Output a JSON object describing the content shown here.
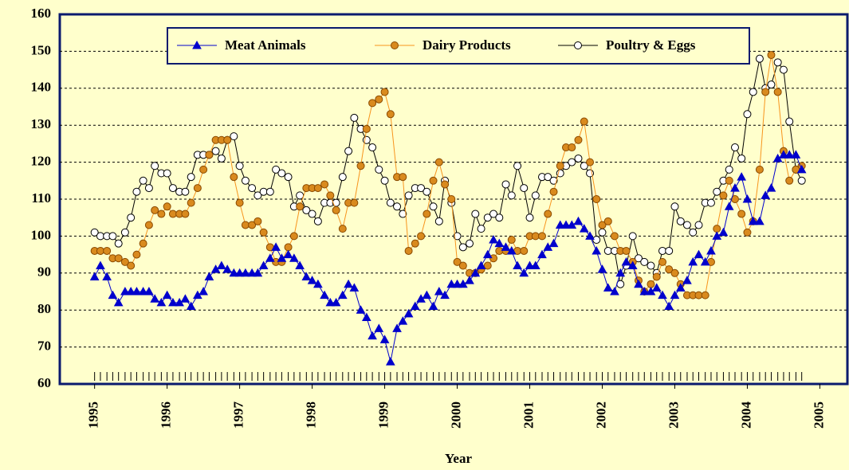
{
  "chart_data": {
    "type": "line",
    "x_label": "Year",
    "x": [
      1995.0,
      1995.08,
      1995.17,
      1995.25,
      1995.33,
      1995.42,
      1995.5,
      1995.58,
      1995.67,
      1995.75,
      1995.83,
      1995.92,
      1996.0,
      1996.08,
      1996.17,
      1996.25,
      1996.33,
      1996.42,
      1996.5,
      1996.58,
      1996.67,
      1996.75,
      1996.83,
      1996.92,
      1997.0,
      1997.08,
      1997.17,
      1997.25,
      1997.33,
      1997.42,
      1997.5,
      1997.58,
      1997.67,
      1997.75,
      1997.83,
      1997.92,
      1998.0,
      1998.08,
      1998.17,
      1998.25,
      1998.33,
      1998.42,
      1998.5,
      1998.58,
      1998.67,
      1998.75,
      1998.83,
      1998.92,
      1999.0,
      1999.08,
      1999.17,
      1999.25,
      1999.33,
      1999.42,
      1999.5,
      1999.58,
      1999.67,
      1999.75,
      1999.83,
      1999.92,
      2000.0,
      2000.08,
      2000.17,
      2000.25,
      2000.33,
      2000.42,
      2000.5,
      2000.58,
      2000.67,
      2000.75,
      2000.83,
      2000.92,
      2001.0,
      2001.08,
      2001.17,
      2001.25,
      2001.33,
      2001.42,
      2001.5,
      2001.58,
      2001.67,
      2001.75,
      2001.83,
      2001.92,
      2002.0,
      2002.08,
      2002.17,
      2002.25,
      2002.33,
      2002.42,
      2002.5,
      2002.58,
      2002.67,
      2002.75,
      2002.83,
      2002.92,
      2003.0,
      2003.08,
      2003.17,
      2003.25,
      2003.33,
      2003.42,
      2003.5,
      2003.58,
      2003.67,
      2003.75,
      2003.83,
      2003.92,
      2004.0,
      2004.08,
      2004.17,
      2004.25,
      2004.33,
      2004.42,
      2004.5,
      2004.58,
      2004.67,
      2004.75
    ],
    "series": [
      {
        "name": "Meat Animals",
        "color": "#0000cc",
        "marker": "triangle",
        "values": [
          89,
          92,
          89,
          84,
          82,
          85,
          85,
          85,
          85,
          85,
          83,
          82,
          84,
          82,
          82,
          83,
          81,
          84,
          85,
          89,
          91,
          92,
          91,
          90,
          90,
          90,
          90,
          90,
          92,
          94,
          97,
          94,
          95,
          94,
          92,
          89,
          88,
          87,
          84,
          82,
          82,
          84,
          87,
          86,
          80,
          78,
          73,
          75,
          72,
          66,
          75,
          77,
          79,
          81,
          83,
          84,
          81,
          85,
          84,
          87,
          87,
          87,
          88,
          90,
          92,
          95,
          99,
          98,
          97,
          96,
          92,
          90,
          92,
          92,
          95,
          97,
          98,
          103,
          103,
          103,
          104,
          102,
          100,
          96,
          91,
          86,
          85,
          90,
          93,
          92,
          87,
          85,
          85,
          86,
          84,
          81,
          84,
          86,
          88,
          93,
          95,
          93,
          96,
          100,
          101,
          108,
          113,
          116,
          110,
          104,
          104,
          111,
          113,
          121,
          122,
          122,
          122,
          118
        ]
      },
      {
        "name": "Dairy Products",
        "color": "#f7941d",
        "marker": "circle",
        "values": [
          96,
          96,
          96,
          94,
          94,
          93,
          92,
          95,
          98,
          103,
          107,
          106,
          108,
          106,
          106,
          106,
          109,
          113,
          118,
          122,
          126,
          126,
          126,
          116,
          109,
          103,
          103,
          104,
          101,
          97,
          93,
          93,
          97,
          100,
          108,
          113,
          113,
          113,
          114,
          111,
          107,
          102,
          109,
          109,
          119,
          129,
          136,
          137,
          139,
          133,
          116,
          116,
          96,
          98,
          100,
          106,
          115,
          120,
          114,
          110,
          93,
          92,
          90,
          90,
          91,
          92,
          94,
          96,
          96,
          99,
          96,
          96,
          100,
          100,
          100,
          106,
          112,
          119,
          124,
          124,
          126,
          131,
          120,
          110,
          103,
          104,
          100,
          96,
          96,
          93,
          88,
          85,
          87,
          89,
          93,
          91,
          90,
          87,
          84,
          84,
          84,
          84,
          93,
          102,
          111,
          115,
          110,
          106,
          101,
          104,
          118,
          139,
          149,
          139,
          123,
          115,
          118,
          119
        ]
      },
      {
        "name": "Poultry & Eggs",
        "color": "#000000",
        "marker": "open-circle",
        "values": [
          101,
          100,
          100,
          100,
          98,
          101,
          105,
          112,
          115,
          113,
          119,
          117,
          117,
          113,
          112,
          112,
          116,
          122,
          122,
          122,
          123,
          121,
          126,
          127,
          119,
          115,
          113,
          111,
          112,
          112,
          118,
          117,
          116,
          108,
          111,
          107,
          106,
          104,
          109,
          109,
          109,
          116,
          123,
          132,
          129,
          126,
          124,
          118,
          115,
          109,
          108,
          106,
          111,
          113,
          113,
          112,
          108,
          104,
          115,
          109,
          100,
          97,
          98,
          106,
          102,
          105,
          106,
          105,
          114,
          111,
          119,
          113,
          105,
          111,
          116,
          116,
          115,
          117,
          119,
          120,
          121,
          119,
          117,
          99,
          101,
          96,
          96,
          87,
          92,
          100,
          94,
          93,
          92,
          90,
          96,
          96,
          108,
          104,
          103,
          101,
          103,
          109,
          109,
          112,
          115,
          118,
          124,
          121,
          133,
          139,
          148,
          140,
          141,
          147,
          145,
          131,
          118,
          115
        ]
      }
    ],
    "xlim": [
      1994.52,
      2005.38
    ],
    "xticks": [
      1995,
      1996,
      1997,
      1998,
      1999,
      2000,
      2001,
      2002,
      2003,
      2004,
      2005
    ],
    "ylim": [
      60,
      160
    ],
    "yticks": [
      60,
      70,
      80,
      90,
      100,
      110,
      120,
      130,
      140,
      150,
      160
    ],
    "grid": true,
    "legend": "top"
  }
}
